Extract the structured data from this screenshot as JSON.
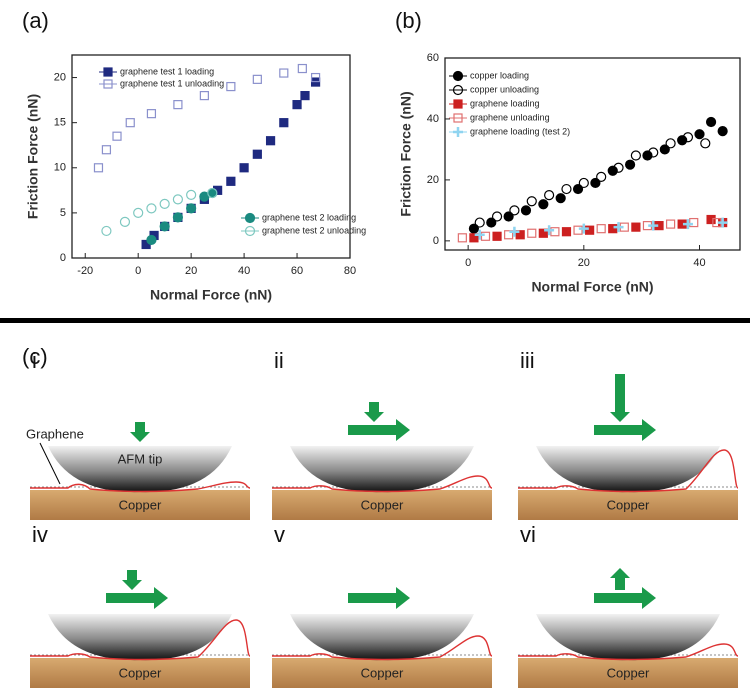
{
  "chart_data": [
    {
      "type": "scatter",
      "title": "(a)",
      "x_label": "Normal Force (nN)",
      "y_label": "Friction Force (nN)",
      "xlim": [
        -25,
        80
      ],
      "ylim": [
        0,
        22.5
      ],
      "xticks": [
        -20,
        0,
        20,
        40,
        60,
        80
      ],
      "yticks": [
        0,
        5,
        10,
        15,
        20
      ],
      "series": [
        {
          "name": "graphene test 1 loading",
          "color": "#1f2a80",
          "marker": "square",
          "filled": true,
          "x": [
            3,
            6,
            10,
            15,
            20,
            25,
            30,
            35,
            40,
            45,
            50,
            55,
            60,
            63,
            67
          ],
          "values": [
            1.5,
            2.5,
            3.5,
            4.5,
            5.5,
            6.5,
            7.5,
            8.5,
            10,
            11.5,
            13,
            15,
            17,
            18,
            19.5
          ]
        },
        {
          "name": "graphene test 1 unloading",
          "color": "#8a90cc",
          "marker": "square",
          "filled": false,
          "x": [
            -15,
            -12,
            -8,
            -3,
            5,
            15,
            25,
            35,
            45,
            55,
            62,
            67
          ],
          "values": [
            10,
            12,
            13.5,
            15,
            16,
            17,
            18,
            19,
            19.8,
            20.5,
            21,
            20
          ]
        },
        {
          "name": "graphene test 2 loading",
          "color": "#1a8a80",
          "marker": "circle",
          "filled": true,
          "x": [
            5,
            10,
            15,
            20,
            25,
            28
          ],
          "values": [
            2,
            3.5,
            4.5,
            5.5,
            6.8,
            7.2
          ]
        },
        {
          "name": "graphene test 2 unloading",
          "color": "#7ec8c0",
          "marker": "circle",
          "filled": false,
          "x": [
            -12,
            -5,
            0,
            5,
            10,
            15,
            20,
            28
          ],
          "values": [
            3,
            4,
            5,
            5.5,
            6,
            6.5,
            7,
            7.2
          ]
        }
      ]
    },
    {
      "type": "scatter",
      "title": "(b)",
      "x_label": "Normal Force (nN)",
      "y_label": "Friction Force (nN)",
      "xlim": [
        -4,
        47
      ],
      "ylim": [
        -3,
        60
      ],
      "xticks": [
        0,
        20,
        40
      ],
      "yticks": [
        0,
        20,
        40,
        60
      ],
      "series": [
        {
          "name": "copper loading",
          "color": "#000000",
          "marker": "circle",
          "filled": true,
          "x": [
            1,
            4,
            7,
            10,
            13,
            16,
            19,
            22,
            25,
            28,
            31,
            34,
            37,
            40,
            42,
            44
          ],
          "values": [
            4,
            6,
            8,
            10,
            12,
            14,
            17,
            19,
            23,
            25,
            28,
            30,
            33,
            35,
            39,
            36
          ]
        },
        {
          "name": "copper unloading",
          "color": "#000000",
          "marker": "circle",
          "filled": false,
          "x": [
            2,
            5,
            8,
            11,
            14,
            17,
            20,
            23,
            26,
            29,
            32,
            35,
            38,
            41
          ],
          "values": [
            6,
            8,
            10,
            13,
            15,
            17,
            19,
            21,
            24,
            28,
            29,
            32,
            34,
            32
          ]
        },
        {
          "name": "graphene loading",
          "color": "#cc2020",
          "marker": "square",
          "filled": true,
          "x": [
            1,
            5,
            9,
            13,
            17,
            21,
            25,
            29,
            33,
            37,
            42,
            44
          ],
          "values": [
            1,
            1.5,
            2,
            2.5,
            3,
            3.5,
            4,
            4.5,
            5,
            5.5,
            7,
            6
          ]
        },
        {
          "name": "graphene unloading",
          "color": "#e07070",
          "marker": "square",
          "filled": false,
          "x": [
            -1,
            3,
            7,
            11,
            15,
            19,
            23,
            27,
            31,
            35,
            39,
            43
          ],
          "values": [
            1,
            1.5,
            2,
            2.5,
            3,
            3.5,
            4,
            4.5,
            5,
            5.5,
            6,
            6
          ]
        },
        {
          "name": "graphene loading (test 2)",
          "color": "#8fd4f0",
          "marker": "cross",
          "filled": true,
          "x": [
            2,
            8,
            14,
            20,
            26,
            32,
            38,
            44
          ],
          "values": [
            2,
            3,
            3.5,
            4,
            4.5,
            5,
            5.5,
            6
          ]
        }
      ]
    }
  ],
  "diagram": {
    "label": "(c)",
    "graphene_label": "Graphene",
    "tip_label": "AFM tip",
    "panels": [
      {
        "numeral": "i",
        "substrate": "Copper"
      },
      {
        "numeral": "ii",
        "substrate": "Copper"
      },
      {
        "numeral": "iii",
        "substrate": "Copper"
      },
      {
        "numeral": "iv",
        "substrate": "Copper"
      },
      {
        "numeral": "v",
        "substrate": "Copper"
      },
      {
        "numeral": "vi",
        "substrate": "Copper"
      }
    ]
  }
}
